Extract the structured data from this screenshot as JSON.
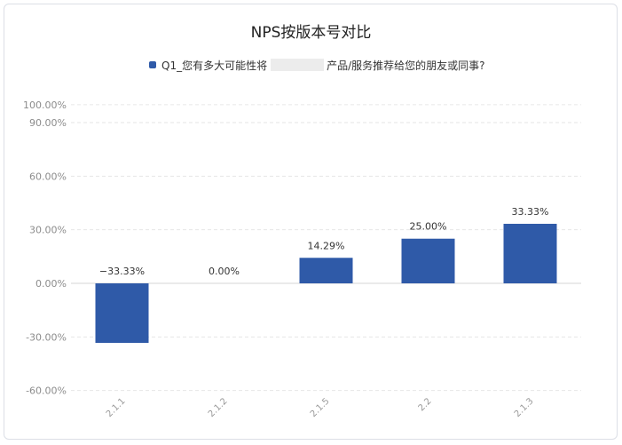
{
  "chart_data": {
    "type": "bar",
    "title": "NPS按版本号对比",
    "legend_position": "top-center",
    "series": [
      {
        "name_parts": [
          "Q1_您有多大可能性将",
          "产品/服务推荐给您的朋友或同事?"
        ],
        "color": "#2f5aa8",
        "values": [
          -33.33,
          0.0,
          14.29,
          25.0,
          33.33
        ],
        "labels": [
          "−33.33%",
          "0.00%",
          "14.29%",
          "25.00%",
          "33.33%"
        ]
      }
    ],
    "categories": [
      "2.1.1",
      "2.1.2",
      "2.1.5",
      "2.2",
      "2.1.3"
    ],
    "y_ticks": [
      {
        "value": 100,
        "label": "100.00%"
      },
      {
        "value": 90,
        "label": "90.00%"
      },
      {
        "value": 60,
        "label": "60.00%"
      },
      {
        "value": 30,
        "label": "30.00%"
      },
      {
        "value": 0,
        "label": "0.00%"
      },
      {
        "value": -30,
        "label": "-30.00%"
      },
      {
        "value": -60,
        "label": "-60.00%"
      }
    ],
    "ylim": [
      -60,
      100
    ],
    "grid": true,
    "colors": {
      "bar": "#2f5aa8",
      "grid": "#e6e6e6",
      "zero_line": "#d6d6d6"
    }
  }
}
